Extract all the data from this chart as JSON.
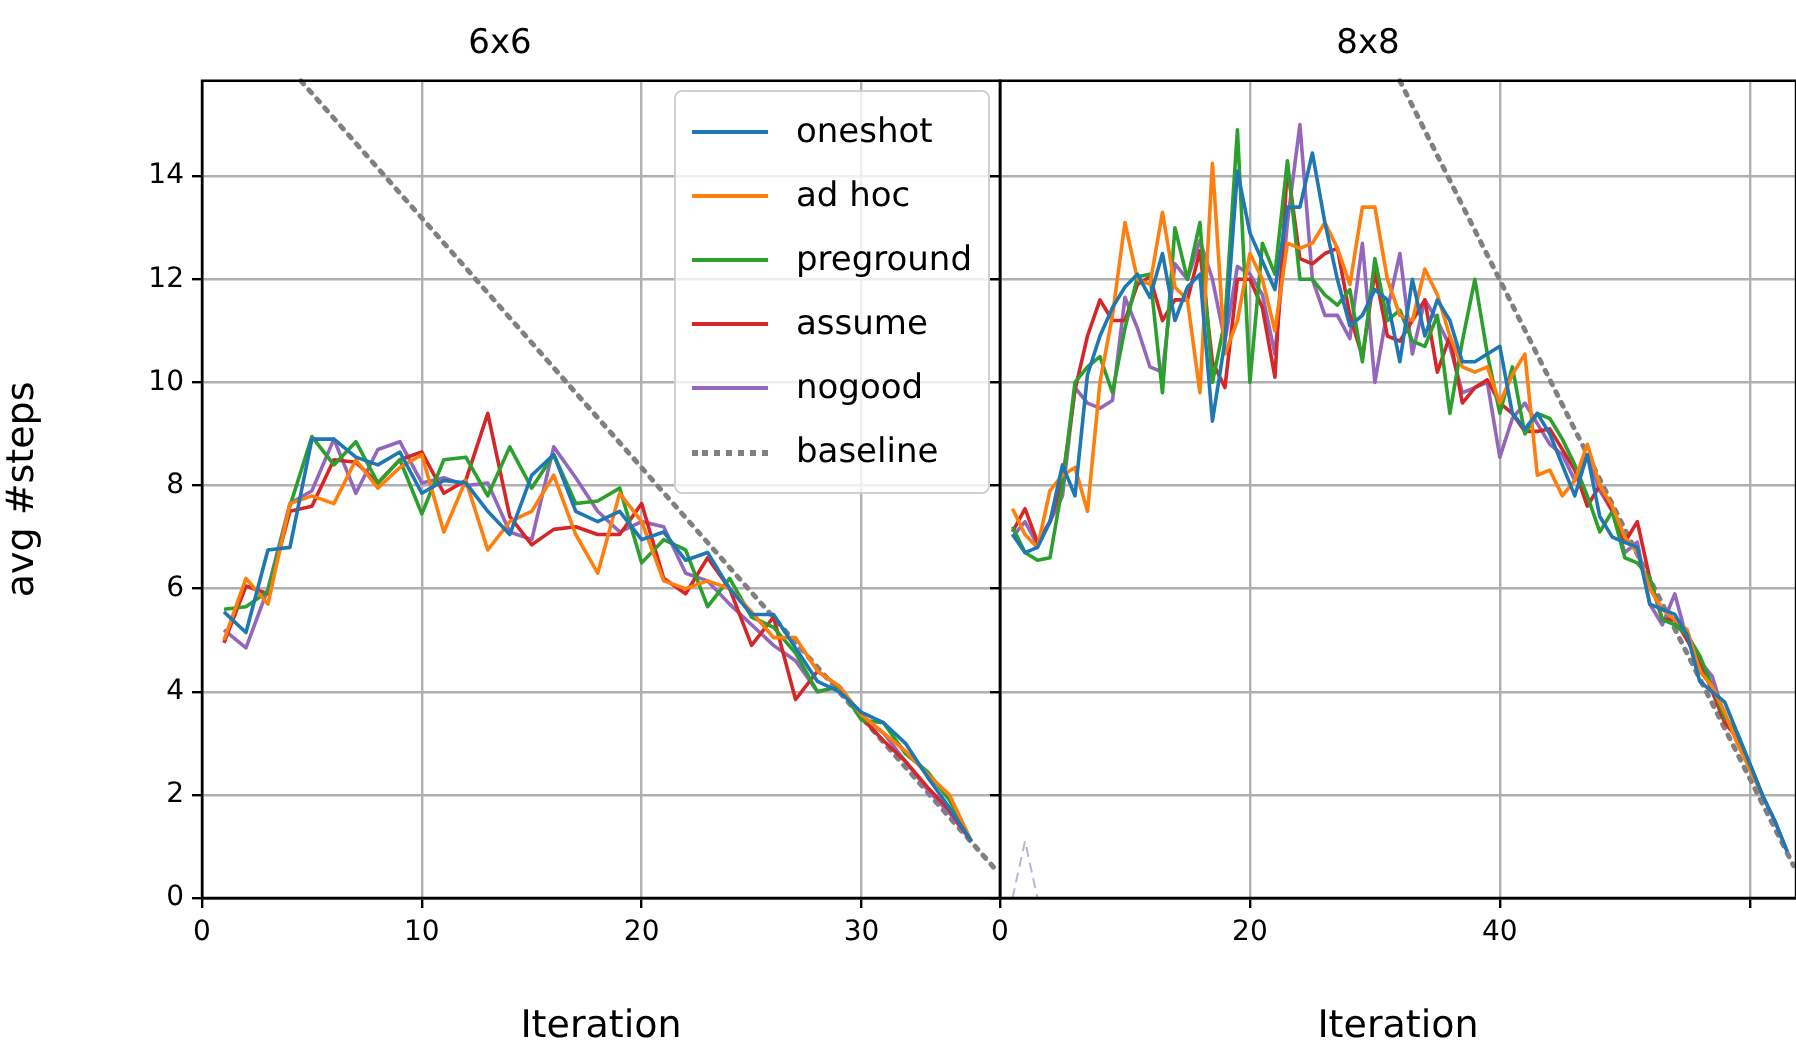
{
  "chart_data": [
    {
      "type": "line",
      "title": "6x6",
      "xlabel": "Iteration",
      "ylabel": "avg #steps",
      "x": [
        1,
        2,
        3,
        4,
        5,
        6,
        7,
        8,
        9,
        10,
        11,
        12,
        13,
        14,
        15,
        16,
        17,
        18,
        19,
        20,
        21,
        22,
        23,
        24,
        25,
        26,
        27,
        28,
        29,
        30,
        31,
        32,
        33,
        34,
        35
      ],
      "xlim": [
        0,
        36.3
      ],
      "xticks": [
        0,
        10,
        20,
        30
      ],
      "ylim": [
        0,
        15.85
      ],
      "yticks": [
        0,
        2,
        4,
        6,
        8,
        10,
        12,
        14
      ],
      "grid": true,
      "legend": "top right",
      "marker": "none",
      "line_style": "solid",
      "series": [
        {
          "name": "oneshot",
          "color": "#1f77b4",
          "values": [
            5.55,
            5.15,
            6.75,
            6.8,
            8.9,
            8.9,
            8.55,
            8.4,
            8.65,
            7.85,
            8.1,
            8.05,
            7.5,
            7.05,
            8.2,
            8.6,
            7.5,
            7.3,
            7.5,
            6.95,
            7.1,
            6.55,
            6.7,
            6.0,
            5.5,
            5.5,
            4.85,
            4.2,
            4.0,
            3.6,
            3.4,
            3.0,
            2.35,
            1.75,
            1.1
          ]
        },
        {
          "name": "ad hoc",
          "color": "#ff7f0e",
          "values": [
            5.0,
            6.2,
            5.7,
            7.65,
            7.8,
            7.65,
            8.5,
            7.95,
            8.35,
            8.6,
            7.1,
            8.1,
            6.75,
            7.3,
            7.5,
            8.2,
            7.05,
            6.3,
            7.85,
            7.3,
            6.15,
            6.0,
            6.15,
            6.0,
            5.55,
            5.05,
            5.05,
            4.4,
            4.1,
            3.55,
            3.2,
            2.85,
            2.4,
            2.0,
            1.1
          ]
        },
        {
          "name": "preground",
          "color": "#2ca02c",
          "values": [
            5.6,
            5.65,
            5.95,
            7.6,
            8.95,
            8.4,
            8.85,
            8.05,
            8.5,
            7.45,
            8.5,
            8.55,
            7.8,
            8.75,
            7.95,
            8.6,
            7.65,
            7.7,
            7.95,
            6.5,
            6.95,
            6.75,
            5.65,
            6.2,
            5.45,
            5.25,
            4.75,
            4.0,
            4.1,
            3.45,
            3.4,
            2.8,
            2.45,
            1.9,
            1.1
          ]
        },
        {
          "name": "assume",
          "color": "#d62728",
          "values": [
            4.95,
            6.05,
            5.9,
            7.5,
            7.6,
            8.5,
            8.45,
            8.05,
            8.5,
            8.65,
            7.85,
            8.1,
            9.4,
            7.4,
            6.85,
            7.15,
            7.2,
            7.05,
            7.05,
            7.65,
            6.2,
            5.9,
            6.6,
            6.0,
            4.9,
            5.45,
            3.85,
            4.4,
            4.1,
            3.5,
            3.05,
            2.65,
            2.15,
            1.7,
            1.1
          ]
        },
        {
          "name": "nogood",
          "color": "#9467bd",
          "values": [
            5.2,
            4.85,
            6.0,
            7.65,
            7.9,
            8.9,
            7.85,
            8.7,
            8.85,
            8.05,
            8.15,
            8.0,
            8.05,
            7.1,
            6.95,
            8.75,
            8.15,
            7.5,
            7.1,
            7.3,
            7.2,
            6.3,
            6.15,
            5.7,
            5.3,
            4.9,
            4.6,
            4.0,
            4.1,
            3.5,
            3.2,
            2.65,
            2.1,
            1.65,
            1.1
          ]
        },
        {
          "name": "baseline",
          "color": "#808080",
          "line_style": "dotted",
          "x": [
            4.5,
            36
          ],
          "values": [
            15.85,
            0.6
          ]
        }
      ]
    },
    {
      "type": "line",
      "title": "8x8",
      "xlabel": "Iteration",
      "x": [
        1,
        2,
        3,
        4,
        5,
        6,
        7,
        8,
        9,
        10,
        11,
        12,
        13,
        14,
        15,
        16,
        17,
        18,
        19,
        20,
        21,
        22,
        23,
        24,
        25,
        26,
        27,
        28,
        29,
        30,
        31,
        32,
        33,
        34,
        35,
        36,
        37,
        38,
        39,
        40,
        41,
        42,
        43,
        44,
        45,
        46,
        47,
        48,
        49,
        50,
        51,
        52,
        53,
        54,
        55,
        56,
        57,
        58,
        59,
        60,
        61,
        62,
        63
      ],
      "xlim": [
        0,
        63.7
      ],
      "xticks": [
        0,
        20,
        40,
        {
          "value": 60,
          "label": null
        }
      ],
      "ylim": [
        0,
        15.85
      ],
      "yticks": [
        0,
        2,
        4,
        6,
        8,
        10,
        12,
        14
      ],
      "grid": true,
      "tick_labels": "x",
      "marker": "none",
      "line_style": "solid",
      "series": [
        {
          "color": "#1f77b4",
          "values": [
            7.05,
            6.7,
            6.8,
            7.3,
            8.4,
            7.8,
            10.15,
            10.9,
            11.45,
            11.85,
            12.1,
            11.65,
            12.5,
            11.2,
            11.85,
            12.1,
            9.25,
            10.8,
            14.1,
            12.9,
            12.35,
            11.8,
            13.4,
            13.4,
            14.45,
            13.1,
            12.0,
            11.1,
            11.3,
            11.8,
            11.6,
            10.4,
            12.0,
            10.9,
            11.6,
            11.2,
            10.4,
            10.4,
            10.55,
            10.7,
            9.4,
            9.1,
            9.4,
            9.0,
            8.4,
            7.8,
            8.6,
            7.4,
            7.0,
            6.9,
            6.8,
            5.7,
            5.6,
            5.5,
            5.1,
            4.2,
            4.0,
            3.8,
            3.2,
            2.6,
            2.0,
            1.5,
            0.9
          ]
        },
        {
          "color": "#ff7f0e",
          "values": [
            7.55,
            7.05,
            6.8,
            7.9,
            8.2,
            8.35,
            7.5,
            10.0,
            11.3,
            13.1,
            12.0,
            11.9,
            13.3,
            11.85,
            11.6,
            9.8,
            14.25,
            10.55,
            11.2,
            12.5,
            12.0,
            11.0,
            12.7,
            12.6,
            12.7,
            13.1,
            12.6,
            11.9,
            13.4,
            13.4,
            12.0,
            11.3,
            11.2,
            12.2,
            11.7,
            10.9,
            10.3,
            10.2,
            10.3,
            9.6,
            10.15,
            10.55,
            8.2,
            8.3,
            7.8,
            8.1,
            8.8,
            8.0,
            7.6,
            7.0,
            6.7,
            6.0,
            5.6,
            5.4,
            5.2,
            4.4,
            4.1,
            3.6,
            3.0,
            2.5,
            2.0,
            null,
            null
          ]
        },
        {
          "color": "#2ca02c",
          "values": [
            7.2,
            6.7,
            6.55,
            6.6,
            8.0,
            10.0,
            10.3,
            10.5,
            9.8,
            11.05,
            12.05,
            12.1,
            9.8,
            13.0,
            12.0,
            13.1,
            10.0,
            11.2,
            14.9,
            10.0,
            12.7,
            12.1,
            14.3,
            12.0,
            12.0,
            11.7,
            11.5,
            11.8,
            10.4,
            12.4,
            11.2,
            11.4,
            10.8,
            10.7,
            11.3,
            9.4,
            10.8,
            12.0,
            10.55,
            9.4,
            10.3,
            9.0,
            9.4,
            9.3,
            8.9,
            8.4,
            7.8,
            7.1,
            7.5,
            6.6,
            6.5,
            6.2,
            5.4,
            5.3,
            5.1,
            4.7,
            4.1,
            3.5,
            3.2,
            2.6,
            2.0,
            null,
            null
          ]
        },
        {
          "color": "#d62728",
          "values": [
            7.1,
            7.55,
            6.9,
            7.3,
            8.1,
            9.85,
            10.9,
            11.6,
            11.2,
            11.2,
            11.9,
            12.05,
            11.2,
            11.6,
            11.6,
            12.55,
            10.4,
            9.9,
            12.0,
            12.0,
            11.45,
            10.1,
            14.2,
            12.4,
            12.3,
            12.5,
            12.6,
            11.3,
            10.5,
            12.15,
            10.9,
            10.8,
            11.2,
            11.6,
            10.2,
            10.9,
            9.6,
            9.9,
            10.05,
            9.6,
            9.4,
            9.05,
            9.05,
            9.1,
            8.7,
            8.3,
            7.6,
            8.0,
            7.5,
            6.9,
            7.3,
            6.2,
            5.4,
            5.4,
            5.0,
            4.6,
            4.0,
            3.4,
            3.1,
            2.6,
            2.0,
            null,
            null
          ]
        },
        {
          "color": "#9467bd",
          "values": [
            7.0,
            7.3,
            6.85,
            7.3,
            7.8,
            9.9,
            9.6,
            9.5,
            9.65,
            11.65,
            11.05,
            10.3,
            10.2,
            12.3,
            12.0,
            12.75,
            12.0,
            10.8,
            12.25,
            12.1,
            11.7,
            10.55,
            13.1,
            15.0,
            12.0,
            11.3,
            11.3,
            10.85,
            12.7,
            10.0,
            11.4,
            12.5,
            10.55,
            11.6,
            11.2,
            10.7,
            9.8,
            9.9,
            10.0,
            8.55,
            9.3,
            9.6,
            9.2,
            8.8,
            8.6,
            8.1,
            8.6,
            7.9,
            7.5,
            6.7,
            6.9,
            5.7,
            5.3,
            5.9,
            5.0,
            4.6,
            4.3,
            3.5,
            3.1,
            2.6,
            2.0,
            1.5,
            0.9
          ]
        },
        {
          "color": "#808080",
          "line_style": "dotted",
          "x": [
            32,
            63.5
          ],
          "values": [
            15.85,
            0.63
          ]
        },
        {
          "color": "#c5b0d5",
          "line_style": "dashed",
          "x": [
            1,
            2,
            3
          ],
          "values": [
            0,
            1.1,
            0
          ]
        }
      ]
    }
  ]
}
